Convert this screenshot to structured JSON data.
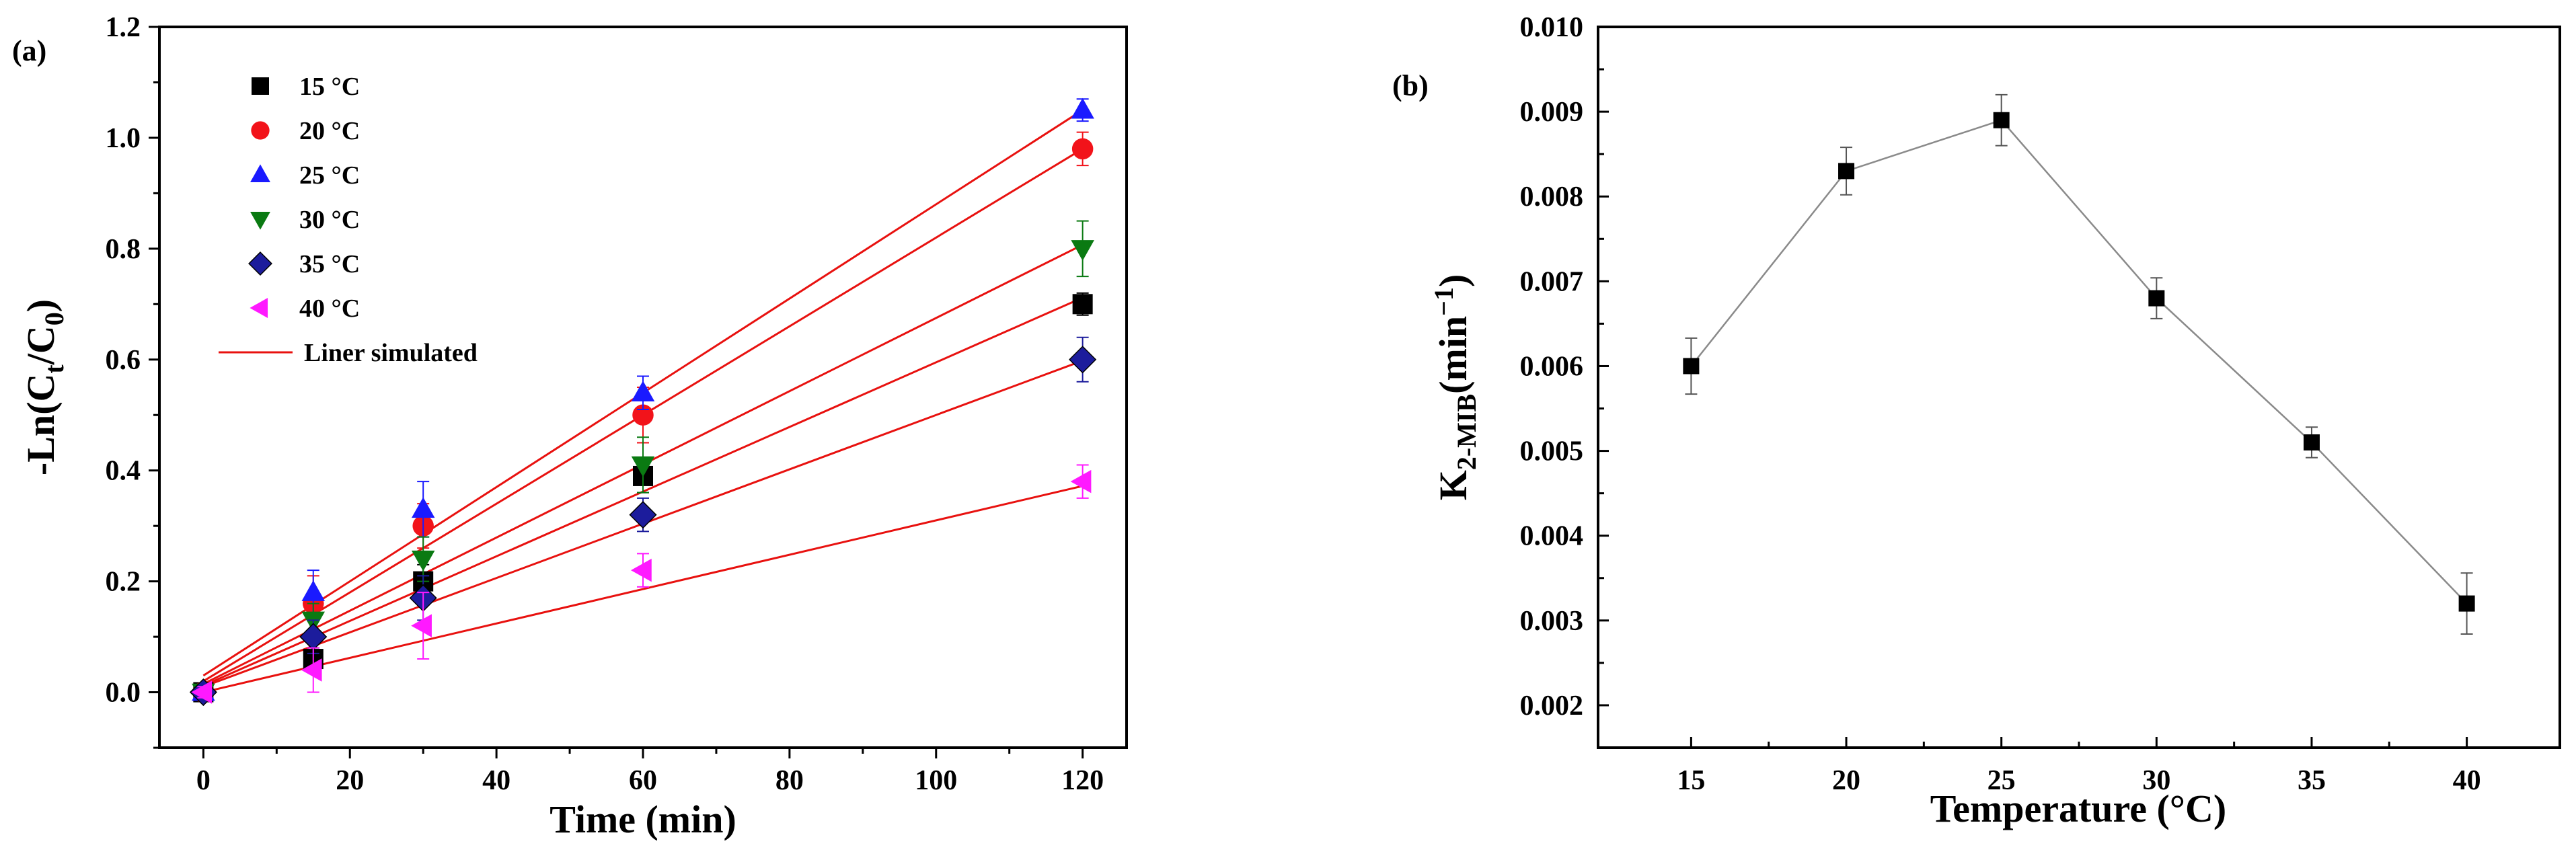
{
  "chart_data": [
    {
      "type": "scatter",
      "panel_label": "(a)",
      "xlabel": "Time (min)",
      "ylabel": "-Ln(C",
      "ylabel_sub1": "t",
      "ylabel_mid": "/C",
      "ylabel_sub2": "0",
      "ylabel_end": ")",
      "xlim": [
        -6,
        126
      ],
      "ylim": [
        -0.1,
        1.2
      ],
      "xticks": [
        "0",
        "20",
        "40",
        "60",
        "80",
        "100",
        "120"
      ],
      "xtick_values": [
        0,
        20,
        40,
        60,
        80,
        100,
        120
      ],
      "yticks": [
        "0.0",
        "0.2",
        "0.4",
        "0.6",
        "0.8",
        "1.0",
        "1.2"
      ],
      "ytick_values": [
        0.0,
        0.2,
        0.4,
        0.6,
        0.8,
        1.0,
        1.2
      ],
      "fit_label": "Liner simulated",
      "fit_color": "#e8110f",
      "series": [
        {
          "name": "15 °C",
          "marker": "square",
          "color": "#000000",
          "x": [
            0,
            15,
            30,
            60,
            120
          ],
          "y": [
            0.0,
            0.06,
            0.2,
            0.39,
            0.7
          ],
          "err": [
            0.01,
            0.02,
            0.03,
            0.03,
            0.02
          ],
          "fit": [
            0.012,
            0.00583
          ]
        },
        {
          "name": "20 °C",
          "marker": "circle",
          "color": "#f2131a",
          "x": [
            0,
            15,
            30,
            60,
            120
          ],
          "y": [
            0.0,
            0.16,
            0.3,
            0.5,
            0.98
          ],
          "err": [
            0.01,
            0.05,
            0.04,
            0.05,
            0.03
          ],
          "fit": [
            0.02,
            0.008
          ]
        },
        {
          "name": "25 °C",
          "marker": "triangle-up",
          "color": "#1a1aff",
          "x": [
            0,
            15,
            30,
            60,
            120
          ],
          "y": [
            0.0,
            0.18,
            0.33,
            0.54,
            1.05
          ],
          "err": [
            0.01,
            0.04,
            0.05,
            0.03,
            0.02
          ],
          "fit": [
            0.03,
            0.0085
          ]
        },
        {
          "name": "30 °C",
          "marker": "triangle-down",
          "color": "#0a7a12",
          "x": [
            0,
            15,
            30,
            60,
            120
          ],
          "y": [
            0.0,
            0.13,
            0.24,
            0.41,
            0.8
          ],
          "err": [
            0.01,
            0.03,
            0.04,
            0.05,
            0.05
          ],
          "fit": [
            0.015,
            0.0066
          ]
        },
        {
          "name": "35 °C",
          "marker": "diamond",
          "color": "#1c1c9c",
          "x": [
            0,
            15,
            30,
            60,
            120
          ],
          "y": [
            0.0,
            0.1,
            0.17,
            0.32,
            0.6
          ],
          "err": [
            0.01,
            0.03,
            0.04,
            0.03,
            0.04
          ],
          "fit": [
            0.01,
            0.0049
          ]
        },
        {
          "name": "40 °C",
          "marker": "triangle-left",
          "color": "#ff19ff",
          "x": [
            0,
            15,
            30,
            60,
            120
          ],
          "y": [
            0.0,
            0.04,
            0.12,
            0.22,
            0.38
          ],
          "err": [
            0.01,
            0.04,
            0.06,
            0.03,
            0.03
          ],
          "fit": [
            0.0,
            0.0031
          ]
        }
      ]
    },
    {
      "type": "line",
      "panel_label": "(b)",
      "xlabel": "Temperature (°C)",
      "ylabel": "K",
      "ylabel_sub": "2-MIB",
      "ylabel_unit": "(min",
      "ylabel_sup": "−1",
      "ylabel_end": ")",
      "categories": [
        "15",
        "20",
        "25",
        "30",
        "35",
        "40"
      ],
      "xlim": [
        12,
        43
      ],
      "ylim": [
        0.0015,
        0.01
      ],
      "yticks": [
        "0.002",
        "0.003",
        "0.004",
        "0.005",
        "0.006",
        "0.007",
        "0.008",
        "0.009",
        "0.010"
      ],
      "ytick_values": [
        0.002,
        0.003,
        0.004,
        0.005,
        0.006,
        0.007,
        0.008,
        0.009,
        0.01
      ],
      "series": [
        {
          "name": "K2-MIB",
          "marker": "square",
          "color": "#000000",
          "line_color": "#8a8a8a",
          "x": [
            15,
            20,
            25,
            30,
            35,
            40
          ],
          "values": [
            0.006,
            0.0083,
            0.0089,
            0.0068,
            0.0051,
            0.0032
          ],
          "err": [
            0.00033,
            0.00028,
            0.0003,
            0.00024,
            0.00018,
            0.00036
          ]
        }
      ]
    }
  ]
}
